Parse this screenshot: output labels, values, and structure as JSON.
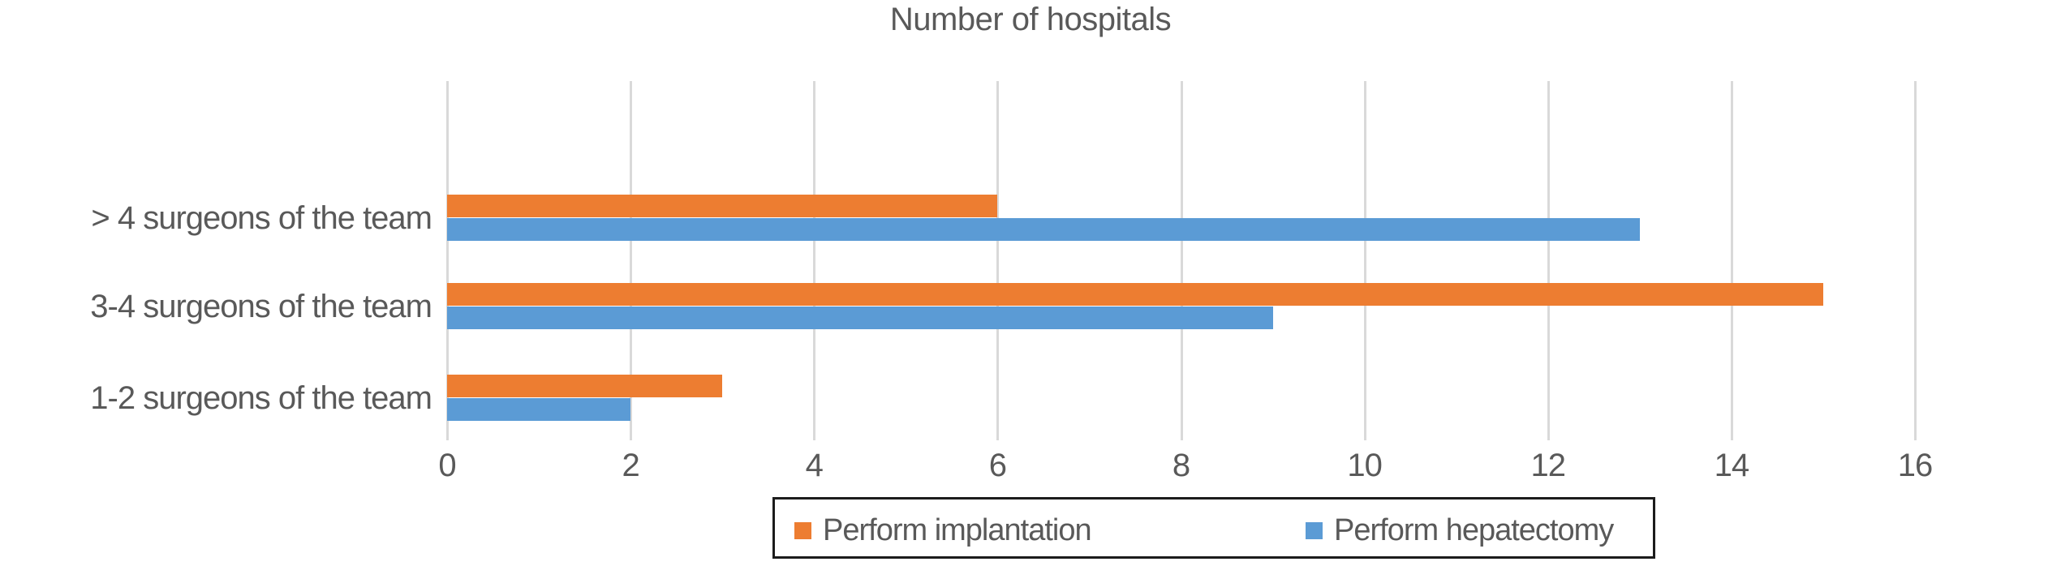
{
  "chart_data": {
    "type": "bar",
    "orientation": "horizontal",
    "title": "Number of hospitals",
    "categories": [
      "> 4 surgeons of the team",
      "3-4 surgeons of the team",
      "1-2 surgeons of the team"
    ],
    "series": [
      {
        "name": "Perform implantation",
        "color": "#ED7D31",
        "values": [
          6,
          15,
          3
        ]
      },
      {
        "name": "Perform hepatectomy",
        "color": "#5B9BD5",
        "values": [
          13,
          9,
          2
        ]
      }
    ],
    "xlabel": "",
    "ylabel": "",
    "xlim": [
      0,
      16
    ],
    "x_tick_step": 2,
    "x_tick_labels": [
      "0",
      "2",
      "4",
      "6",
      "8",
      "10",
      "12",
      "14",
      "16"
    ],
    "grid": true,
    "gridline_color": "#D9D9D9",
    "text_color": "#595959",
    "legend_position": "bottom",
    "legend_border_color": "#1C1C1C"
  }
}
